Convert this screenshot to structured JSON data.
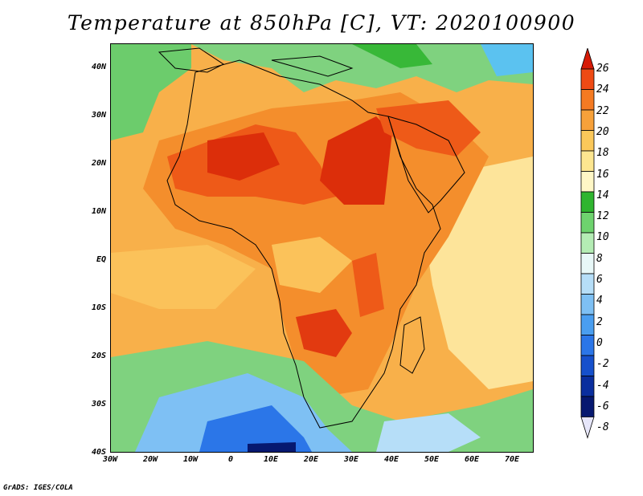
{
  "title": "Temperature at 850hPa [C], VT: 2020100900",
  "footer": "GrADS: IGES/COLA",
  "axes": {
    "lat_labels": [
      "40N",
      "30N",
      "20N",
      "10N",
      "EQ",
      "10S",
      "20S",
      "30S",
      "40S"
    ],
    "lon_labels": [
      "30W",
      "20W",
      "10W",
      "0",
      "10E",
      "20E",
      "30E",
      "40E",
      "50E",
      "60E",
      "70E"
    ]
  },
  "colorbar": {
    "levels": [
      "26",
      "24",
      "22",
      "20",
      "18",
      "16",
      "14",
      "12",
      "10",
      "8",
      "6",
      "4",
      "2",
      "0",
      "-2",
      "-4",
      "-6",
      "-8"
    ],
    "colors": [
      "#d61a06",
      "#ee4a14",
      "#f47a22",
      "#f7a13a",
      "#fbc85a",
      "#fde690",
      "#fff7c6",
      "#2fb52f",
      "#6ed36e",
      "#b4ecb4",
      "#e8f8f8",
      "#b6def8",
      "#7ec0f4",
      "#4a9ef0",
      "#2b76e8",
      "#1650cc",
      "#0a2e9e",
      "#061870",
      "#e6e6fa"
    ]
  }
}
